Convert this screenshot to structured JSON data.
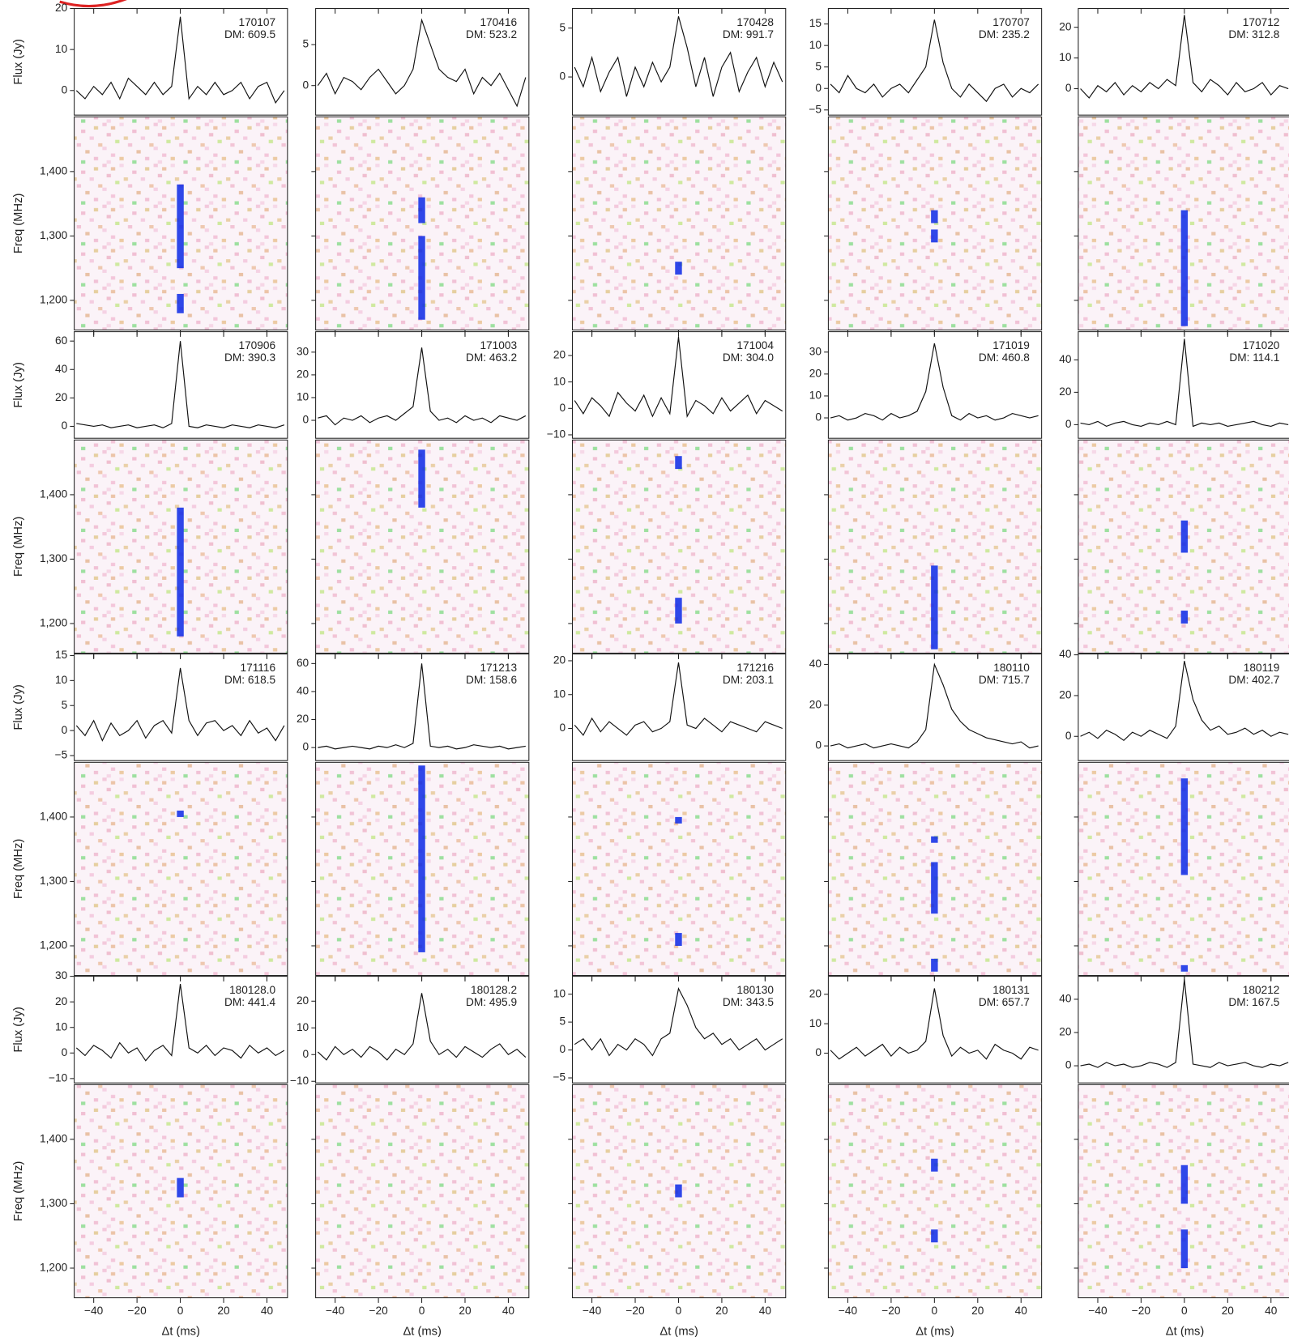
{
  "chart_data": {
    "type": "panel-grid",
    "flux_label": "Flux (Jy)",
    "freq_label": "Freq (MHz)",
    "time_label": "Δt (ms)",
    "line_color": "#111111",
    "burst_color": "#0a28e6",
    "x": [
      -48,
      -44,
      -40,
      -36,
      -32,
      -28,
      -24,
      -20,
      -16,
      -12,
      -8,
      -4,
      0,
      4,
      8,
      12,
      16,
      20,
      24,
      28,
      32,
      36,
      40,
      44,
      48
    ],
    "xlim": [
      -49,
      49.5
    ],
    "xticks": [
      {
        "value": -40,
        "label": "−40"
      },
      {
        "value": -20,
        "label": "−20"
      },
      0,
      20,
      40
    ],
    "freq_ylim": [
      1154,
      1485
    ],
    "freq_yticks": [
      {
        "value": 1200,
        "label": "1,200"
      },
      {
        "value": 1300,
        "label": "1,300"
      },
      {
        "value": 1400,
        "label": "1,400"
      }
    ],
    "panels": [
      {
        "title": "170107",
        "subtitle": "DM: 609.5",
        "ylim": [
          -6,
          20
        ],
        "yticks": [
          0,
          10,
          20
        ],
        "values": [
          0,
          -2,
          1,
          -1,
          2,
          -2,
          3,
          1,
          -1,
          2,
          -1,
          1,
          18,
          -2,
          1,
          -1,
          2,
          -1,
          0,
          2,
          -2,
          1,
          2,
          -3,
          0
        ],
        "bursts": [
          [
            1180,
            1210
          ],
          [
            1250,
            1380
          ]
        ]
      },
      {
        "title": "170416",
        "subtitle": "DM: 523.2",
        "ylim": [
          -3.6,
          9.4
        ],
        "yticks": [
          0,
          5
        ],
        "values": [
          0,
          1.5,
          -1,
          1,
          0.5,
          -0.5,
          1,
          2,
          0.5,
          -1,
          0,
          2,
          8,
          5,
          2,
          1,
          0.5,
          2,
          -1,
          1,
          0,
          1.5,
          -0.5,
          -2.5,
          1
        ],
        "bursts": [
          [
            1170,
            1300
          ],
          [
            1320,
            1360
          ]
        ]
      },
      {
        "title": "170428",
        "subtitle": "DM: 991.7",
        "ylim": [
          -3.9,
          7
        ],
        "yticks": [
          0,
          5
        ],
        "values": [
          1,
          -1,
          2,
          -1.5,
          0.5,
          2,
          -2,
          1,
          -1,
          1.5,
          -0.5,
          1,
          6.2,
          3,
          -1,
          2,
          -2,
          1,
          2.5,
          -1.5,
          0.5,
          2,
          -1,
          1.5,
          -0.5
        ],
        "bursts": [
          [
            1240,
            1260
          ]
        ]
      },
      {
        "title": "170707",
        "subtitle": "DM: 235.2",
        "ylim": [
          -6.2,
          18.6
        ],
        "yticks": [
          {
            "value": -5,
            "label": "−5"
          },
          0,
          5,
          10,
          15
        ],
        "values": [
          1,
          -1,
          3,
          0,
          -1,
          1,
          -2,
          0,
          1,
          -1,
          2,
          5,
          16,
          6,
          0,
          -2,
          1,
          -1,
          -3,
          0,
          1,
          -2,
          0,
          -1,
          1
        ],
        "bursts": [
          [
            1290,
            1310
          ],
          [
            1320,
            1340
          ]
        ]
      },
      {
        "title": "170712",
        "subtitle": "DM: 312.8",
        "ylim": [
          -8.6,
          26.1
        ],
        "yticks": [
          0,
          10,
          20
        ],
        "values": [
          0,
          -3,
          1,
          -1,
          2,
          -2,
          1,
          -1,
          2,
          0,
          3,
          1,
          24,
          2,
          -1,
          3,
          1,
          -2,
          2,
          -1,
          0,
          2,
          -2,
          1,
          0
        ],
        "bursts": [
          [
            1160,
            1340
          ]
        ]
      },
      {
        "title": "170906",
        "subtitle": "DM: 390.3",
        "ylim": [
          -8.4,
          66.6
        ],
        "yticks": [
          0,
          20,
          40,
          60
        ],
        "values": [
          2,
          1,
          0,
          1,
          -1,
          0,
          1,
          -1,
          0,
          1,
          -1,
          2,
          60,
          0,
          -1,
          1,
          0,
          -1,
          1,
          0,
          -1,
          1,
          0,
          -1,
          1
        ],
        "bursts": [
          [
            1180,
            1380
          ]
        ]
      },
      {
        "title": "171003",
        "subtitle": "DM: 463.2",
        "ylim": [
          -7.9,
          39
        ],
        "yticks": [
          0,
          10,
          20,
          30
        ],
        "values": [
          1,
          2,
          -2,
          1,
          0,
          2,
          -1,
          1,
          2,
          0,
          3,
          6,
          32,
          4,
          0,
          1,
          -1,
          2,
          0,
          1,
          -1,
          2,
          1,
          0,
          2
        ],
        "bursts": [
          [
            1380,
            1470
          ]
        ]
      },
      {
        "title": "171004",
        "subtitle": "DM: 304.0",
        "ylim": [
          -11.3,
          29
        ],
        "yticks": [
          {
            "value": -10,
            "label": "−10"
          },
          0,
          10,
          20
        ],
        "values": [
          3,
          -2,
          4,
          1,
          -3,
          6,
          2,
          -1,
          5,
          -3,
          4,
          -2,
          27,
          -3,
          3,
          1,
          -2,
          4,
          -1,
          2,
          5,
          -2,
          3,
          1,
          -1
        ],
        "bursts": [
          [
            1200,
            1240
          ],
          [
            1440,
            1460
          ]
        ]
      },
      {
        "title": "171019",
        "subtitle": "DM: 460.8",
        "ylim": [
          -9.3,
          39.3
        ],
        "yticks": [
          0,
          10,
          20,
          30
        ],
        "values": [
          0,
          1,
          -1,
          0,
          2,
          1,
          -1,
          2,
          0,
          1,
          3,
          12,
          34,
          14,
          1,
          -1,
          2,
          0,
          1,
          -1,
          0,
          2,
          1,
          0,
          1
        ],
        "bursts": [
          [
            1160,
            1290
          ]
        ]
      },
      {
        "title": "171020",
        "subtitle": "DM: 114.1",
        "ylim": [
          -8.4,
          57.4
        ],
        "yticks": [
          0,
          20,
          40
        ],
        "values": [
          1,
          0,
          2,
          -1,
          1,
          2,
          0,
          -1,
          1,
          0,
          2,
          0,
          53,
          -1,
          1,
          0,
          1,
          -1,
          0,
          1,
          2,
          0,
          -1,
          1,
          0
        ],
        "bursts": [
          [
            1200,
            1220
          ],
          [
            1310,
            1360
          ]
        ]
      },
      {
        "title": "171116",
        "subtitle": "DM: 618.5",
        "ylim": [
          -6,
          15.3
        ],
        "yticks": [
          {
            "value": -5,
            "label": "−5"
          },
          0,
          5,
          10,
          15
        ],
        "values": [
          1,
          -1,
          2,
          -2,
          1.5,
          -1,
          0,
          2,
          -1.5,
          1,
          2,
          -0.5,
          12.5,
          2,
          -1,
          1.5,
          2,
          0,
          1,
          -1,
          2,
          -0.5,
          0.5,
          -2,
          1
        ],
        "bursts": [
          [
            1400,
            1410
          ]
        ]
      },
      {
        "title": "171213",
        "subtitle": "DM: 158.6",
        "ylim": [
          -9.3,
          66.8
        ],
        "yticks": [
          0,
          20,
          40,
          60
        ],
        "values": [
          0,
          1,
          -1,
          0,
          1,
          0,
          -1,
          1,
          0,
          2,
          0,
          3,
          60,
          1,
          0,
          1,
          -1,
          0,
          2,
          1,
          0,
          1,
          -1,
          0,
          1
        ],
        "bursts": [
          [
            1190,
            1480
          ]
        ]
      },
      {
        "title": "171216",
        "subtitle": "DM: 203.1",
        "ylim": [
          -9.5,
          22
        ],
        "yticks": [
          0,
          10,
          20
        ],
        "values": [
          1,
          -2,
          3,
          -1,
          2,
          0,
          -2,
          1,
          2,
          -1,
          0,
          2,
          19.5,
          1,
          0,
          3,
          1,
          -1,
          2,
          1,
          0,
          -1,
          2,
          1,
          0
        ],
        "bursts": [
          [
            1200,
            1220
          ],
          [
            1390,
            1400
          ]
        ]
      },
      {
        "title": "180110",
        "subtitle": "DM: 715.7",
        "ylim": [
          -7.2,
          45.1
        ],
        "yticks": [
          0,
          20,
          40
        ],
        "values": [
          0,
          1,
          -1,
          0,
          1,
          -1,
          0,
          1,
          0,
          -1,
          2,
          8,
          40,
          30,
          18,
          12,
          8,
          6,
          4,
          3,
          2,
          1,
          2,
          -1,
          0
        ],
        "bursts": [
          [
            1160,
            1180
          ],
          [
            1250,
            1330
          ],
          [
            1360,
            1370
          ]
        ]
      },
      {
        "title": "180119",
        "subtitle": "DM: 402.7",
        "ylim": [
          -11.9,
          40.4
        ],
        "yticks": [
          0,
          20,
          40
        ],
        "values": [
          0,
          2,
          -1,
          3,
          1,
          -2,
          2,
          0,
          3,
          1,
          -1,
          5,
          37,
          18,
          8,
          3,
          5,
          1,
          2,
          4,
          1,
          3,
          0,
          2,
          1
        ],
        "bursts": [
          [
            1160,
            1170
          ],
          [
            1310,
            1460
          ]
        ]
      },
      {
        "title": "180128.0",
        "subtitle": "DM: 441.4",
        "ylim": [
          -11.7,
          30
        ],
        "yticks": [
          {
            "value": -10,
            "label": "−10"
          },
          0,
          10,
          20,
          30
        ],
        "values": [
          2,
          -1,
          3,
          1,
          -2,
          4,
          0,
          2,
          -3,
          1,
          3,
          -1,
          27,
          2,
          0,
          3,
          -1,
          2,
          1,
          -2,
          3,
          0,
          2,
          -1,
          1
        ],
        "bursts": [
          [
            1310,
            1340
          ]
        ]
      },
      {
        "title": "180128.2",
        "subtitle": "DM: 495.9",
        "ylim": [
          -10.6,
          29.3
        ],
        "yticks": [
          {
            "value": -10,
            "label": "−10"
          },
          0,
          10,
          20
        ],
        "values": [
          1,
          -2,
          3,
          0,
          2,
          -1,
          3,
          1,
          -2,
          2,
          0,
          4,
          23,
          5,
          0,
          2,
          -1,
          3,
          1,
          -1,
          2,
          4,
          0,
          2,
          -1
        ],
        "bursts": []
      },
      {
        "title": "180130",
        "subtitle": "DM: 343.5",
        "ylim": [
          -5.9,
          13.2
        ],
        "yticks": [
          {
            "value": -5,
            "label": "−5"
          },
          0,
          5,
          10
        ],
        "values": [
          1,
          2,
          0,
          2,
          -1,
          1,
          0,
          2,
          1,
          -1,
          2,
          3,
          11,
          8,
          4,
          2,
          3,
          1,
          2,
          0,
          1,
          2,
          0,
          1,
          2
        ],
        "bursts": [
          [
            1310,
            1330
          ]
        ]
      },
      {
        "title": "180131",
        "subtitle": "DM: 657.7",
        "ylim": [
          -10.1,
          26.1
        ],
        "yticks": [
          0,
          10,
          20
        ],
        "values": [
          1,
          -2,
          0,
          2,
          -1,
          1,
          3,
          -1,
          2,
          0,
          1,
          4,
          22,
          6,
          -1,
          2,
          0,
          1,
          -2,
          3,
          1,
          0,
          -2,
          2,
          1
        ],
        "bursts": [
          [
            1240,
            1260
          ],
          [
            1350,
            1370
          ]
        ]
      },
      {
        "title": "180212",
        "subtitle": "DM: 167.5",
        "ylim": [
          -10.3,
          53.8
        ],
        "yticks": [
          0,
          20,
          40
        ],
        "values": [
          0,
          1,
          -1,
          2,
          0,
          1,
          -1,
          0,
          2,
          1,
          -1,
          2,
          52,
          1,
          0,
          -1,
          2,
          0,
          1,
          2,
          0,
          -1,
          1,
          0,
          2
        ],
        "bursts": [
          [
            1200,
            1260
          ],
          [
            1300,
            1360
          ]
        ]
      }
    ]
  }
}
